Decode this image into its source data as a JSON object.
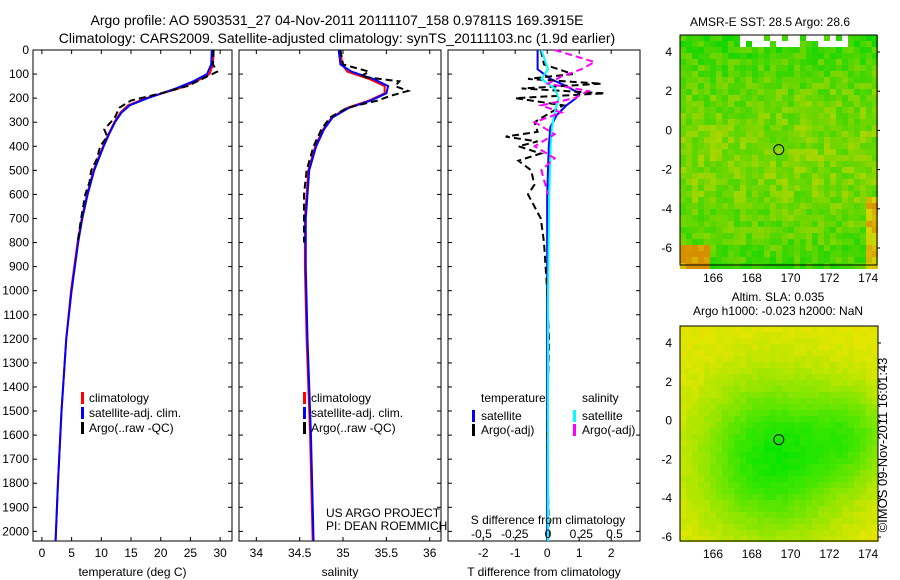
{
  "chart_data": {
    "type": "line",
    "title_line1": "Argo profile: AO 5903531_27 04-Nov-2011 20111107_158 0.97811S 169.3915E",
    "title_line2": "Climatology: CARS2009. Satellite-adjusted climatology: synTS_20111103.nc (1.9d earlier)",
    "depth_ticks": [
      0,
      100,
      200,
      300,
      400,
      500,
      600,
      700,
      800,
      900,
      1000,
      1100,
      1200,
      1300,
      1400,
      1500,
      1600,
      1700,
      1800,
      1900,
      2000
    ],
    "depth_range": [
      0,
      2040
    ],
    "panels": [
      {
        "name": "temperature",
        "xlabel": "temperature (deg C)",
        "xticks": [
          0,
          5,
          10,
          15,
          20,
          25,
          30
        ],
        "xlim": [
          -1.5,
          32
        ],
        "legend": [
          "climatology",
          "satellite-adj. clim.",
          "Argo(..raw -QC)"
        ],
        "series": [
          {
            "name": "climatology",
            "color": "#ff0000",
            "depth": [
              0,
              60,
              100,
              130,
              160,
              200,
              230,
              260,
              300,
              350,
              400,
              500,
              600,
              700,
              800,
              1000,
              1200,
              1500,
              1800,
              2040
            ],
            "values": [
              28.9,
              28.8,
              28.2,
              26,
              23,
              17.5,
              14.5,
              13.2,
              12.2,
              11.2,
              10.3,
              8.7,
              7.6,
              6.7,
              6,
              4.9,
              4.1,
              3.3,
              2.7,
              2.3
            ]
          },
          {
            "name": "satellite-adj. clim.",
            "color": "#0000ff",
            "depth": [
              0,
              60,
              100,
              130,
              160,
              200,
              230,
              260,
              300,
              350,
              400,
              500,
              600,
              700,
              800,
              1000,
              1200,
              1500,
              1800,
              2040
            ],
            "values": [
              28.6,
              28.5,
              27.8,
              25.5,
              22.5,
              17.8,
              14.8,
              13.4,
              12.3,
              11.3,
              10.4,
              8.8,
              7.7,
              6.8,
              6.1,
              5,
              4.1,
              3.3,
              2.7,
              2.3
            ]
          },
          {
            "name": "Argo(..raw -QC)",
            "color": "#000000",
            "dashed": true,
            "depth": [
              0,
              60,
              90,
              120,
              150,
              180,
              210,
              240,
              280,
              330,
              360,
              400,
              450,
              500,
              550,
              600,
              700,
              800
            ],
            "values": [
              28.9,
              28.8,
              29.5,
              27,
              24.5,
              20,
              15,
              13,
              12.3,
              10.5,
              11,
              9.8,
              9.3,
              8.3,
              8,
              7.3,
              6.6,
              6
            ]
          }
        ]
      },
      {
        "name": "salinity",
        "xlabel": "salinity",
        "xticks": [
          34,
          34.5,
          35,
          35.5,
          36
        ],
        "xlim": [
          33.8,
          36.13
        ],
        "legend": [
          "climatology",
          "satellite-adj. clim.",
          "Argo(..raw -QC)"
        ],
        "annotation": [
          "US ARGO PROJECT",
          "PI: DEAN ROEMMICH"
        ],
        "series": [
          {
            "name": "climatology",
            "color": "#ff0000",
            "depth": [
              0,
              60,
              90,
              120,
              150,
              180,
              210,
              240,
              280,
              330,
              400,
              500,
              700,
              900,
              1200,
              1600,
              2040
            ],
            "values": [
              34.97,
              34.99,
              35.05,
              35.3,
              35.48,
              35.48,
              35.3,
              35.05,
              34.87,
              34.77,
              34.68,
              34.6,
              34.56,
              34.56,
              34.58,
              34.62,
              34.65
            ]
          },
          {
            "name": "satellite-adj. clim.",
            "color": "#0000ff",
            "depth": [
              0,
              60,
              90,
              120,
              150,
              180,
              210,
              240,
              280,
              330,
              400,
              500,
              700,
              900,
              1200,
              1600,
              2040
            ],
            "values": [
              34.95,
              34.97,
              35.1,
              35.35,
              35.52,
              35.5,
              35.32,
              35.07,
              34.88,
              34.78,
              34.69,
              34.61,
              34.57,
              34.57,
              34.59,
              34.63,
              34.66
            ]
          },
          {
            "name": "Argo(..raw -QC)",
            "color": "#000000",
            "dashed": true,
            "depth": [
              0,
              60,
              90,
              110,
              130,
              150,
              170,
              190,
              210,
              240,
              280,
              330,
              400,
              500,
              600,
              700,
              800
            ],
            "values": [
              34.97,
              35.0,
              35.3,
              35.2,
              35.65,
              35.6,
              35.75,
              35.55,
              35.4,
              35.05,
              34.85,
              34.75,
              34.66,
              34.58,
              34.55,
              34.55,
              34.55
            ]
          }
        ]
      },
      {
        "name": "difference",
        "xlabel": "T difference from climatology",
        "xlabel_top": "S difference from climatology",
        "xticks": [
          -2,
          -1,
          0,
          1,
          2
        ],
        "xlim": [
          -3.1,
          2.9
        ],
        "xticks_top": [
          -0.5,
          -0.25,
          0,
          0.25,
          0.5
        ],
        "xticks_top_labels": [
          "-0.5",
          "-0.25",
          "0",
          "0.25",
          "0.5"
        ],
        "legend_headers": [
          "temperature",
          "salinity"
        ],
        "legend": [
          "satellite",
          "Argo(-adj)",
          "satellite",
          "Argo(-adj)"
        ],
        "series": [
          {
            "name": "temperature satellite",
            "color": "#0000ff",
            "axis": "T",
            "depth": [
              0,
              80,
              120,
              150,
              180,
              200,
              230,
              270,
              320,
              400,
              600,
              1000,
              2040
            ],
            "values": [
              -0.3,
              -0.3,
              0.1,
              0.6,
              1.0,
              0.9,
              0.6,
              0.3,
              0.1,
              0.05,
              0,
              0,
              0
            ]
          },
          {
            "name": "temperature Argo(-adj)",
            "color": "#000000",
            "axis": "T",
            "dashed": true,
            "depth": [
              0,
              60,
              100,
              120,
              140,
              160,
              180,
              200,
              230,
              260,
              300,
              340,
              360,
              380,
              400,
              430,
              460,
              500,
              560,
              600,
              700,
              800,
              1000,
              1200,
              1600,
              2040
            ],
            "values": [
              -0.2,
              -0.1,
              0.8,
              -0.6,
              1.7,
              -0.8,
              1.8,
              -1.0,
              0.5,
              0.1,
              -0.4,
              -0.3,
              -1.3,
              -0.3,
              -0.9,
              -0.2,
              -0.9,
              -0.5,
              -0.4,
              -0.6,
              -0.2,
              -0.1,
              0,
              0.05,
              0,
              0.05
            ]
          },
          {
            "name": "salinity satellite",
            "color": "#00ffff",
            "axis": "S",
            "depth": [
              0,
              80,
              120,
              160,
              200,
              260,
              320,
              400,
              600,
              1000,
              2040
            ],
            "values": [
              -0.05,
              0,
              -0.05,
              0.05,
              0.08,
              0.05,
              0.03,
              0.02,
              0.01,
              0,
              0
            ]
          },
          {
            "name": "salinity Argo(-adj)",
            "color": "#ff00ff",
            "axis": "S",
            "dashed": true,
            "depth": [
              0,
              50,
              80,
              110,
              140,
              170,
              200,
              230,
              260,
              300,
              350,
              400,
              450,
              500,
              600
            ],
            "values": [
              0.05,
              0.35,
              0.25,
              0.1,
              0.0,
              0.3,
              0.2,
              -0.05,
              0.1,
              -0.1,
              0.05,
              -0.1,
              0.05,
              -0.05,
              0
            ]
          }
        ]
      }
    ],
    "maps": [
      {
        "title": [
          "AMSR-E SST: 28.5 Argo: 28.6"
        ],
        "xticks": [
          166,
          168,
          170,
          172,
          174
        ],
        "yticks": [
          4,
          2,
          0,
          -2,
          -4,
          -6
        ],
        "float_lon": 169.39,
        "float_lat": -0.98
      },
      {
        "title": [
          "Altim. SLA: 0.035",
          "Argo h1000: -0.023 h2000: NaN"
        ],
        "xticks": [
          166,
          168,
          170,
          172,
          174
        ],
        "yticks": [
          4,
          2,
          0,
          -2,
          -4,
          -6
        ],
        "float_lon": 169.39,
        "float_lat": -0.98
      }
    ],
    "credit": "©IMOS 09-Nov-2011 16:01:43"
  }
}
